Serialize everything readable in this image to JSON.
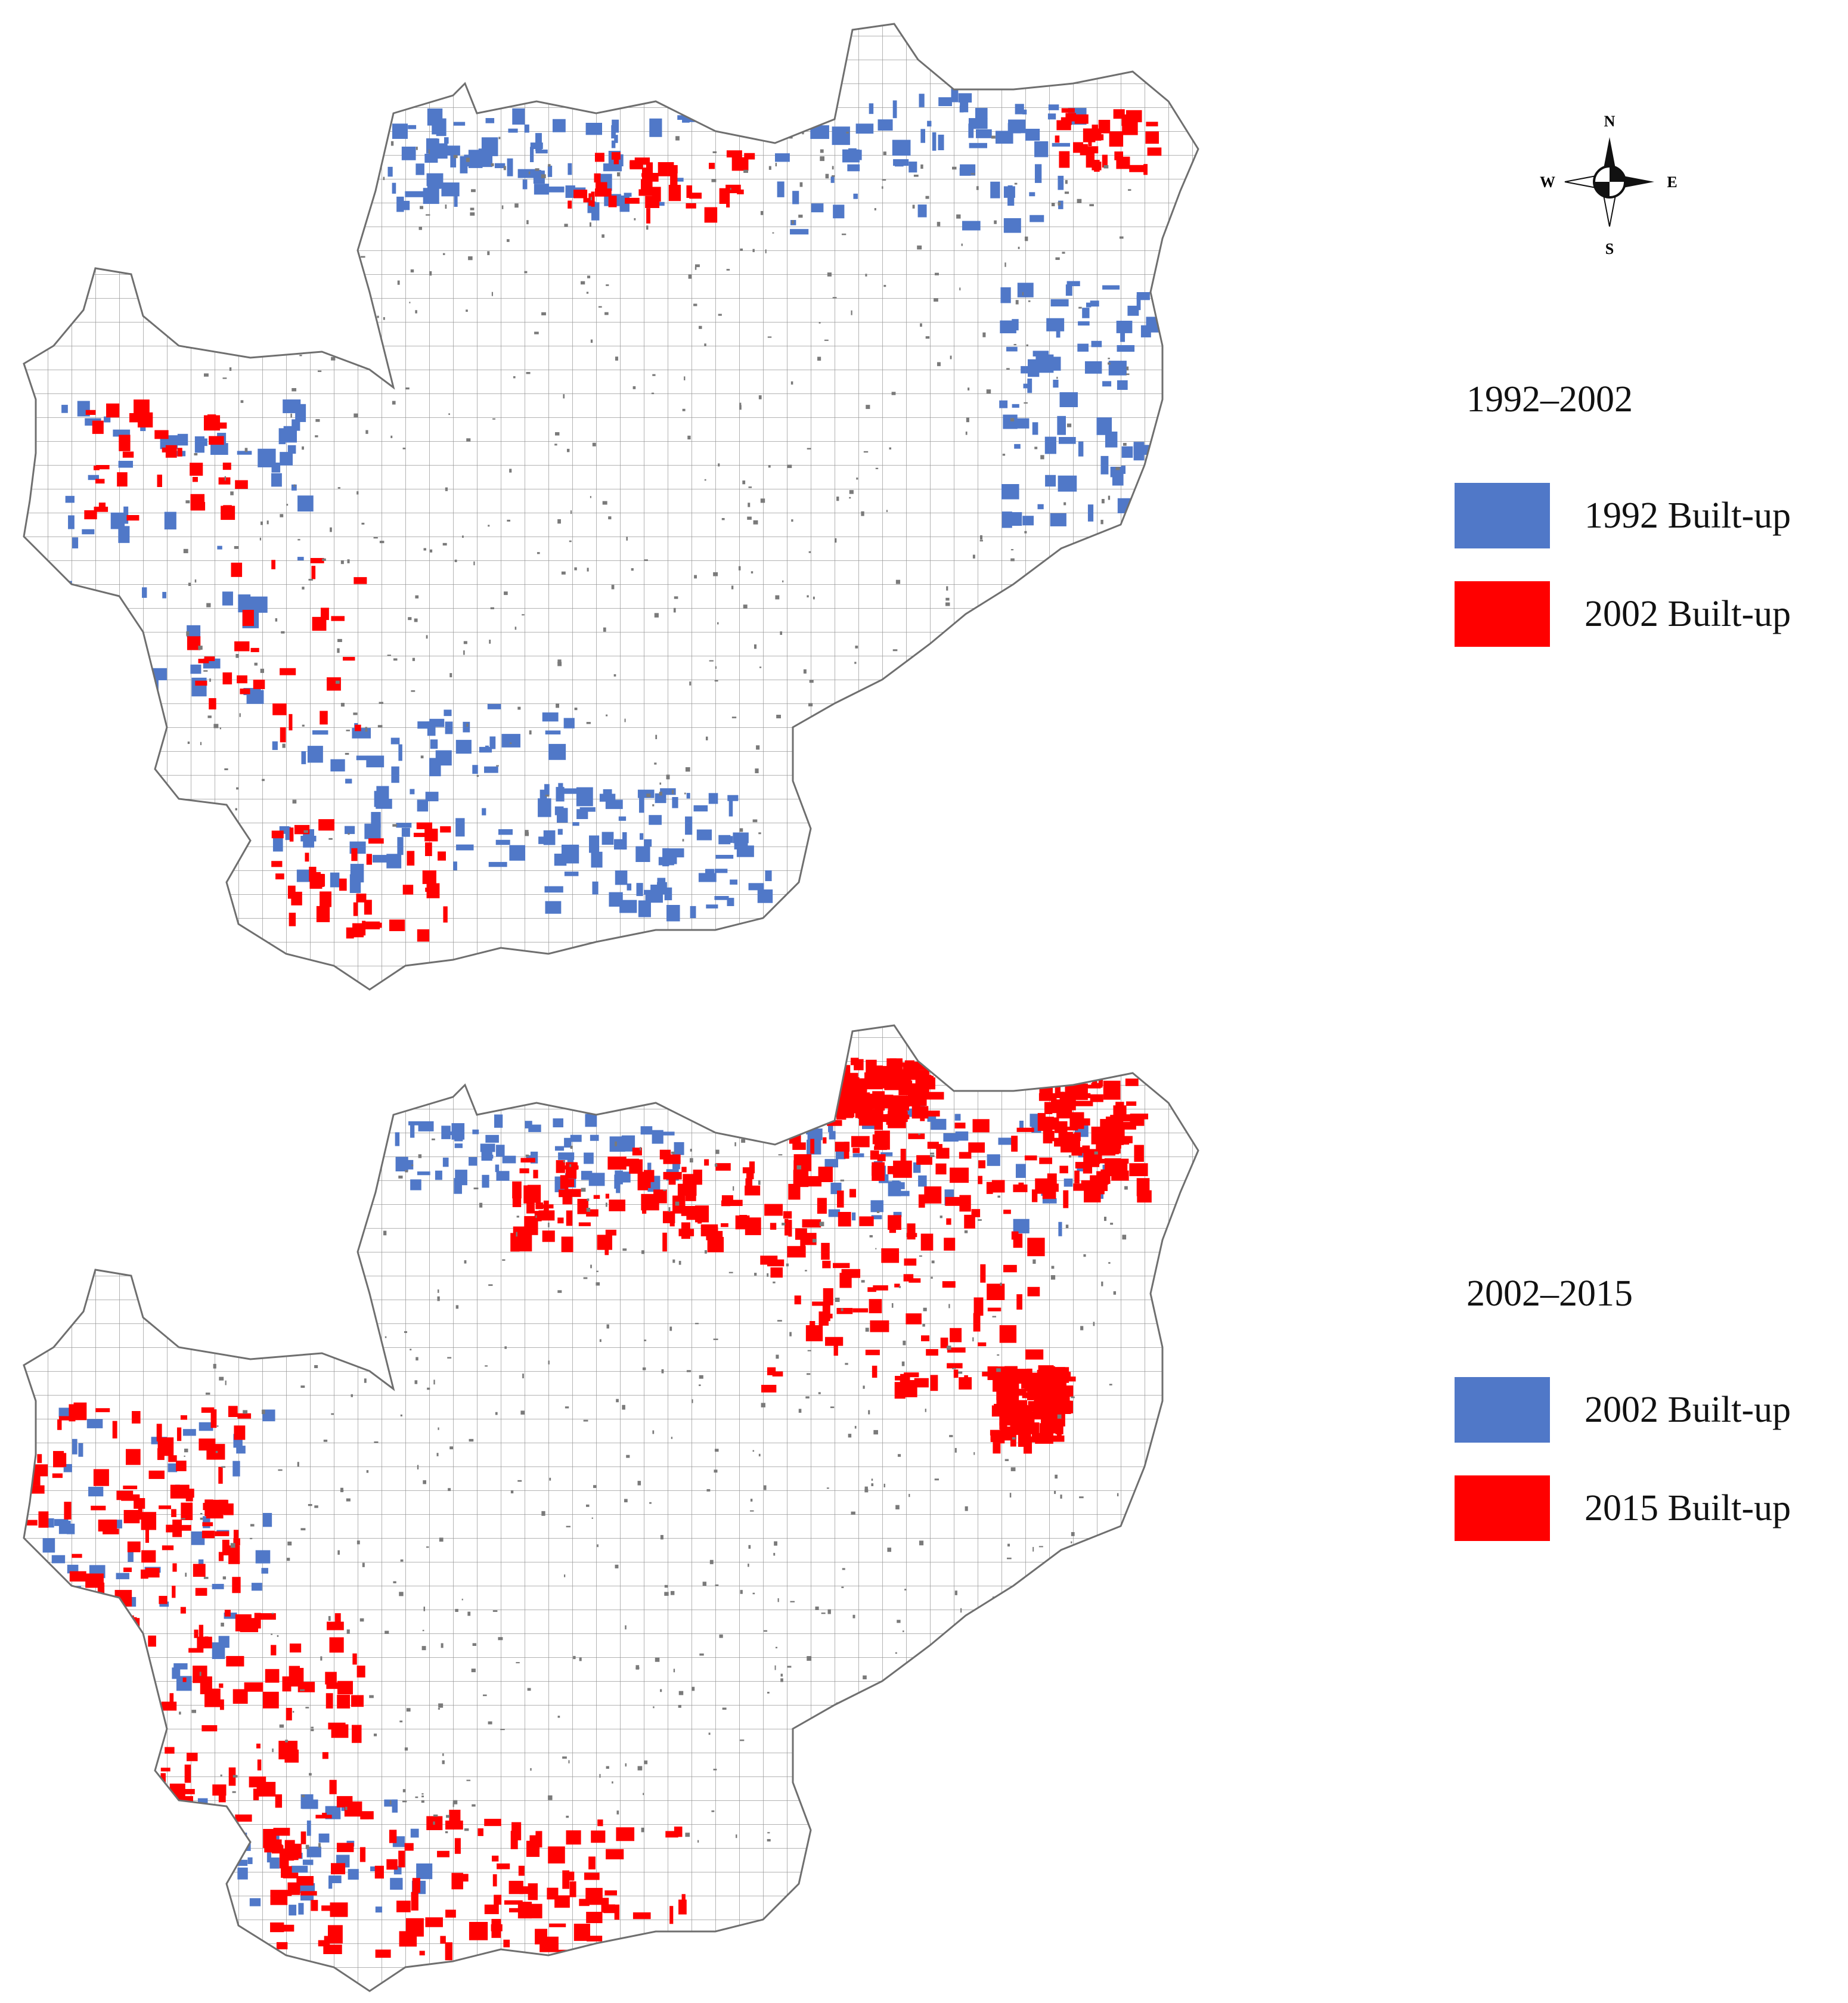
{
  "colors": {
    "built_old": "#5078C8",
    "built_new": "#FF0000",
    "outline": "#7a7a7a",
    "grid": "#9a9a9a"
  },
  "compass": {
    "icon": "north-arrow-compass",
    "n": "N",
    "s": "S",
    "e": "E",
    "w": "W"
  },
  "panels": [
    {
      "period": "1992–2002",
      "legend": [
        {
          "label": "1992 Built-up",
          "color": "#5078C8"
        },
        {
          "label": "2002 Built-up",
          "color": "#FF0000"
        }
      ]
    },
    {
      "period": "2002–2015",
      "legend": [
        {
          "label": "2002 Built-up",
          "color": "#5078C8"
        },
        {
          "label": "2015 Built-up",
          "color": "#FF0000"
        }
      ]
    }
  ]
}
